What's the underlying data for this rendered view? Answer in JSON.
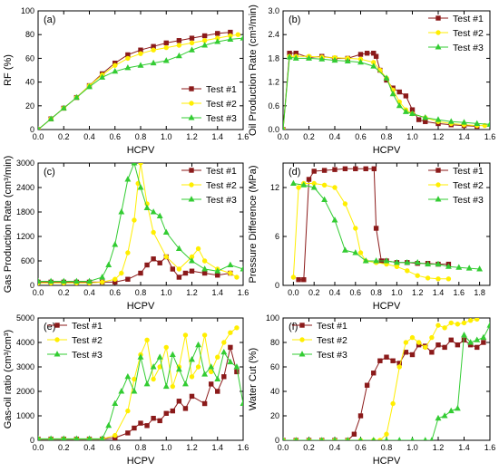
{
  "figure": {
    "xlabel": "HCPV"
  },
  "legend": {
    "series": [
      {
        "name": "Test #1",
        "color": "#8b1a1a",
        "marker": "square"
      },
      {
        "name": "Test #2",
        "color": "#ffee00",
        "marker": "circle"
      },
      {
        "name": "Test #3",
        "color": "#33cc33",
        "marker": "triangle"
      }
    ]
  },
  "chart_data": [
    {
      "panel": "(a)",
      "type": "line",
      "ylabel": "RF (%)",
      "xlabel": "HCPV",
      "xlim": [
        0,
        1.6
      ],
      "ylim": [
        0,
        100
      ],
      "xticks": [
        "0.0",
        "0.2",
        "0.4",
        "0.6",
        "0.8",
        "1.0",
        "1.2",
        "1.4",
        "1.6"
      ],
      "yticks": [
        "0",
        "20",
        "40",
        "60",
        "80",
        "100"
      ],
      "legend_position": "middle-right",
      "series": [
        {
          "name": "Test #1",
          "x": [
            0,
            0.1,
            0.2,
            0.3,
            0.4,
            0.5,
            0.6,
            0.7,
            0.8,
            0.9,
            1.0,
            1.1,
            1.2,
            1.3,
            1.4,
            1.5
          ],
          "y": [
            0,
            9,
            18,
            27,
            37,
            47,
            56,
            63,
            67,
            70,
            73,
            75,
            77,
            79,
            81,
            82
          ]
        },
        {
          "name": "Test #2",
          "x": [
            0,
            0.1,
            0.2,
            0.3,
            0.4,
            0.5,
            0.6,
            0.7,
            0.8,
            0.9,
            1.0,
            1.1,
            1.2,
            1.3,
            1.4,
            1.5,
            1.56
          ],
          "y": [
            0,
            9,
            18,
            27,
            37,
            46,
            54,
            60,
            64,
            67,
            69,
            71,
            73,
            75,
            77,
            79,
            80
          ]
        },
        {
          "name": "Test #3",
          "x": [
            0,
            0.1,
            0.2,
            0.3,
            0.4,
            0.5,
            0.6,
            0.7,
            0.8,
            0.9,
            1.0,
            1.1,
            1.2,
            1.3,
            1.4,
            1.5,
            1.6
          ],
          "y": [
            0,
            9,
            18,
            27,
            36,
            44,
            49,
            52,
            54,
            56,
            58,
            62,
            67,
            71,
            74,
            76,
            77
          ]
        }
      ]
    },
    {
      "panel": "(b)",
      "type": "line",
      "ylabel": "Oil Production Rate (cm³/min)",
      "xlabel": "HCPV",
      "xlim": [
        0,
        1.6
      ],
      "ylim": [
        0,
        3.0
      ],
      "xticks": [
        "0.0",
        "0.2",
        "0.4",
        "0.6",
        "0.8",
        "1.0",
        "1.2",
        "1.4",
        "1.6"
      ],
      "yticks": [
        "0.0",
        "0.6",
        "1.2",
        "1.8",
        "2.4",
        "3.0"
      ],
      "legend_position": "top-right",
      "series": [
        {
          "name": "Test #1",
          "x": [
            0,
            0.05,
            0.1,
            0.2,
            0.3,
            0.4,
            0.5,
            0.6,
            0.65,
            0.7,
            0.72,
            0.75,
            0.8,
            0.85,
            0.9,
            0.95,
            1.0,
            1.05,
            1.1,
            1.2,
            1.3,
            1.4,
            1.5
          ],
          "y": [
            0,
            1.93,
            1.93,
            1.82,
            1.85,
            1.8,
            1.8,
            1.9,
            1.93,
            1.93,
            1.85,
            1.5,
            1.25,
            1.05,
            0.95,
            0.85,
            0.5,
            0.25,
            0.2,
            0.15,
            0.12,
            0.1,
            0.08
          ]
        },
        {
          "name": "Test #2",
          "x": [
            0,
            0.05,
            0.1,
            0.2,
            0.3,
            0.4,
            0.5,
            0.6,
            0.7,
            0.75,
            0.8,
            0.85,
            0.9,
            0.95,
            1.0,
            1.1,
            1.2,
            1.3,
            1.4,
            1.5,
            1.56
          ],
          "y": [
            0,
            1.85,
            1.85,
            1.85,
            1.83,
            1.82,
            1.8,
            1.78,
            1.7,
            1.5,
            1.3,
            1.0,
            0.7,
            0.5,
            0.4,
            0.3,
            0.2,
            0.15,
            0.12,
            0.1,
            0.1
          ]
        },
        {
          "name": "Test #3",
          "x": [
            0,
            0.05,
            0.1,
            0.2,
            0.3,
            0.4,
            0.5,
            0.6,
            0.7,
            0.8,
            0.85,
            0.9,
            0.95,
            1.0,
            1.1,
            1.2,
            1.3,
            1.4,
            1.5,
            1.6
          ],
          "y": [
            0,
            1.83,
            1.8,
            1.8,
            1.78,
            1.75,
            1.73,
            1.7,
            1.6,
            1.3,
            0.9,
            0.6,
            0.45,
            0.4,
            0.3,
            0.25,
            0.2,
            0.18,
            0.15,
            0.13
          ]
        }
      ]
    },
    {
      "panel": "(c)",
      "type": "line",
      "ylabel": "Gas Production Rate (cm³/min)",
      "xlabel": "HCPV",
      "xlim": [
        0,
        1.6
      ],
      "ylim": [
        0,
        3000
      ],
      "xticks": [
        "0.0",
        "0.2",
        "0.4",
        "0.6",
        "0.8",
        "1.0",
        "1.2",
        "1.4",
        "1.6"
      ],
      "yticks": [
        "0",
        "600",
        "1200",
        "1800",
        "2400",
        "3000"
      ],
      "legend_position": "top-right",
      "series": [
        {
          "name": "Test #1",
          "x": [
            0,
            0.1,
            0.2,
            0.3,
            0.4,
            0.5,
            0.6,
            0.7,
            0.8,
            0.85,
            0.9,
            0.95,
            1.0,
            1.05,
            1.1,
            1.15,
            1.2,
            1.3,
            1.4,
            1.5
          ],
          "y": [
            80,
            80,
            80,
            80,
            80,
            80,
            80,
            150,
            300,
            500,
            650,
            550,
            700,
            400,
            200,
            300,
            350,
            300,
            250,
            300
          ]
        },
        {
          "name": "Test #2",
          "x": [
            0,
            0.1,
            0.2,
            0.3,
            0.4,
            0.5,
            0.6,
            0.65,
            0.7,
            0.75,
            0.78,
            0.8,
            0.85,
            0.9,
            1.0,
            1.1,
            1.2,
            1.25,
            1.3,
            1.4,
            1.5,
            1.55
          ],
          "y": [
            60,
            60,
            60,
            60,
            60,
            80,
            150,
            300,
            800,
            1600,
            2500,
            3000,
            2000,
            1300,
            700,
            400,
            700,
            900,
            600,
            400,
            300,
            200
          ]
        },
        {
          "name": "Test #3",
          "x": [
            0,
            0.1,
            0.2,
            0.3,
            0.4,
            0.5,
            0.55,
            0.6,
            0.65,
            0.7,
            0.75,
            0.8,
            0.85,
            0.9,
            0.95,
            1.0,
            1.1,
            1.2,
            1.3,
            1.4,
            1.5,
            1.6
          ],
          "y": [
            100,
            100,
            100,
            100,
            100,
            200,
            500,
            1000,
            1800,
            2600,
            3000,
            2400,
            1900,
            1800,
            1700,
            1300,
            900,
            600,
            400,
            350,
            500,
            400
          ]
        }
      ]
    },
    {
      "panel": "(d)",
      "type": "line",
      "ylabel": "Pressure Difference (MPa)",
      "xlabel": "HCPV",
      "xlim": [
        -0.1,
        1.9
      ],
      "ylim": [
        0,
        15
      ],
      "xticks": [
        "0.0",
        "0.2",
        "0.4",
        "0.6",
        "0.8",
        "1.0",
        "1.2",
        "1.4",
        "1.6",
        "1.8"
      ],
      "yticks": [
        "0",
        "6",
        "12"
      ],
      "legend_position": "top-right",
      "series": [
        {
          "name": "Test #1",
          "x": [
            0.05,
            0.1,
            0.15,
            0.2,
            0.3,
            0.4,
            0.5,
            0.6,
            0.7,
            0.78,
            0.8,
            0.85,
            0.9,
            1.0,
            1.1,
            1.2,
            1.3,
            1.4,
            1.5
          ],
          "y": [
            0.7,
            0.7,
            13,
            14,
            14.1,
            14.2,
            14.3,
            14.3,
            14.3,
            14.3,
            7,
            3,
            3,
            2.8,
            2.8,
            2.7,
            2.7,
            2.6,
            2.6
          ]
        },
        {
          "name": "Test #2",
          "x": [
            0,
            0.05,
            0.1,
            0.2,
            0.3,
            0.4,
            0.5,
            0.6,
            0.65,
            0.7,
            0.8,
            0.9,
            1.0,
            1.1,
            1.2,
            1.3,
            1.4,
            1.5
          ],
          "y": [
            1,
            12,
            12.5,
            12.5,
            12.3,
            12,
            10,
            7,
            4,
            3,
            2.8,
            2.6,
            2.3,
            1.8,
            1.2,
            0.9,
            0.8,
            0.8
          ]
        },
        {
          "name": "Test #3",
          "x": [
            0,
            0.1,
            0.2,
            0.3,
            0.4,
            0.5,
            0.6,
            0.7,
            0.8,
            0.9,
            1.0,
            1.1,
            1.2,
            1.3,
            1.4,
            1.5,
            1.6,
            1.7,
            1.8
          ],
          "y": [
            12.5,
            12.3,
            12,
            10.5,
            8,
            4.3,
            4,
            3,
            3,
            3,
            2.8,
            2.8,
            2.8,
            2.6,
            2.6,
            2.3,
            2.2,
            2.1,
            2
          ]
        }
      ]
    },
    {
      "panel": "(e)",
      "type": "line",
      "ylabel": "Gas-oil ratio (cm³/cm³)",
      "xlabel": "HCPV",
      "xlim": [
        0,
        1.6
      ],
      "ylim": [
        0,
        5000
      ],
      "xticks": [
        "0.0",
        "0.2",
        "0.4",
        "0.6",
        "0.8",
        "1.0",
        "1.2",
        "1.4",
        "1.6"
      ],
      "yticks": [
        "0",
        "1000",
        "2000",
        "3000",
        "4000",
        "5000"
      ],
      "legend_position": "top-left",
      "series": [
        {
          "name": "Test #1",
          "x": [
            0,
            0.1,
            0.2,
            0.3,
            0.4,
            0.5,
            0.6,
            0.7,
            0.75,
            0.8,
            0.85,
            0.9,
            0.95,
            1.0,
            1.05,
            1.1,
            1.15,
            1.2,
            1.3,
            1.35,
            1.4,
            1.45,
            1.5,
            1.55
          ],
          "y": [
            50,
            50,
            50,
            50,
            50,
            50,
            100,
            300,
            500,
            700,
            600,
            900,
            800,
            1100,
            1200,
            1600,
            1300,
            1800,
            1500,
            2300,
            2000,
            2600,
            3800,
            2800
          ]
        },
        {
          "name": "Test #2",
          "x": [
            0,
            0.1,
            0.2,
            0.3,
            0.4,
            0.5,
            0.6,
            0.7,
            0.75,
            0.8,
            0.85,
            0.9,
            0.95,
            1.0,
            1.05,
            1.1,
            1.15,
            1.2,
            1.25,
            1.3,
            1.35,
            1.4,
            1.45,
            1.5,
            1.55
          ],
          "y": [
            50,
            50,
            50,
            50,
            50,
            50,
            200,
            1200,
            2500,
            3500,
            4100,
            2500,
            3000,
            3800,
            2200,
            3000,
            4300,
            2600,
            3000,
            4300,
            2800,
            3400,
            4000,
            4400,
            4600
          ]
        },
        {
          "name": "Test #3",
          "x": [
            0,
            0.1,
            0.2,
            0.3,
            0.4,
            0.5,
            0.55,
            0.6,
            0.65,
            0.7,
            0.75,
            0.8,
            0.85,
            0.9,
            0.95,
            1.0,
            1.05,
            1.1,
            1.15,
            1.2,
            1.25,
            1.3,
            1.35,
            1.4,
            1.45,
            1.5,
            1.55,
            1.6
          ],
          "y": [
            60,
            60,
            60,
            60,
            60,
            60,
            600,
            1500,
            2000,
            2600,
            2000,
            3400,
            2300,
            3000,
            3400,
            2200,
            3500,
            2900,
            2300,
            3300,
            3900,
            2700,
            3000,
            2500,
            3600,
            3200,
            3000,
            1500
          ]
        }
      ]
    },
    {
      "panel": "(f)",
      "type": "line",
      "ylabel": "Water Cut (%)",
      "xlabel": "HCPV",
      "xlim": [
        0,
        1.6
      ],
      "ylim": [
        0,
        100
      ],
      "xticks": [
        "0.0",
        "0.2",
        "0.4",
        "0.6",
        "0.8",
        "1.0",
        "1.2",
        "1.4",
        "1.6"
      ],
      "yticks": [
        "0",
        "20",
        "40",
        "60",
        "80",
        "100"
      ],
      "legend_position": "top-left",
      "series": [
        {
          "name": "Test #1",
          "x": [
            0,
            0.1,
            0.2,
            0.3,
            0.4,
            0.5,
            0.55,
            0.6,
            0.65,
            0.7,
            0.75,
            0.8,
            0.85,
            0.9,
            0.95,
            1.0,
            1.05,
            1.1,
            1.15,
            1.2,
            1.25,
            1.3,
            1.35,
            1.4,
            1.45,
            1.5,
            1.55
          ],
          "y": [
            0,
            0,
            0,
            0,
            0,
            0,
            5,
            20,
            45,
            55,
            65,
            68,
            65,
            63,
            72,
            70,
            78,
            77,
            72,
            78,
            76,
            82,
            78,
            82,
            78,
            76,
            80
          ]
        },
        {
          "name": "Test #2",
          "x": [
            0,
            0.1,
            0.2,
            0.3,
            0.4,
            0.5,
            0.6,
            0.7,
            0.75,
            0.8,
            0.85,
            0.9,
            0.95,
            1.0,
            1.05,
            1.1,
            1.15,
            1.2,
            1.25,
            1.3,
            1.35,
            1.4,
            1.45,
            1.5
          ],
          "y": [
            0,
            0,
            0,
            0,
            0,
            0,
            0,
            0,
            0,
            5,
            30,
            60,
            80,
            84,
            80,
            76,
            84,
            94,
            92,
            96,
            95,
            96,
            98,
            99
          ]
        },
        {
          "name": "Test #3",
          "x": [
            0,
            0.1,
            0.2,
            0.3,
            0.4,
            0.5,
            0.6,
            0.7,
            0.8,
            0.9,
            1.0,
            1.1,
            1.15,
            1.2,
            1.25,
            1.3,
            1.35,
            1.4,
            1.45,
            1.5,
            1.55,
            1.6
          ],
          "y": [
            0,
            0,
            0,
            0,
            0,
            0,
            0,
            0,
            0,
            0,
            0,
            0,
            0,
            18,
            20,
            24,
            26,
            86,
            80,
            82,
            84,
            94
          ]
        }
      ]
    }
  ]
}
